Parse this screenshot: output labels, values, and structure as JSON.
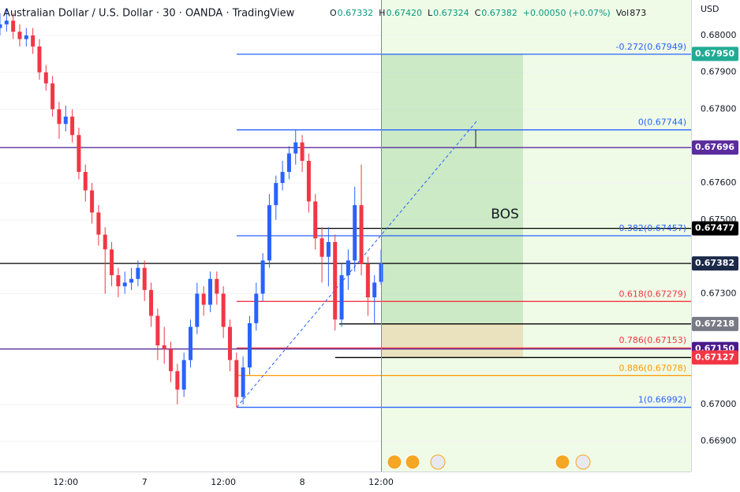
{
  "chart_data": {
    "type": "candlestick",
    "title": "Australian Dollar / U.S. Dollar · 30 · OANDA · TradingView",
    "quote": [
      {
        "key": "O",
        "value": "0.67332"
      },
      {
        "key": "H",
        "value": "0.67420"
      },
      {
        "key": "L",
        "value": "0.67324"
      },
      {
        "key": "C",
        "value": "0.67382"
      },
      {
        "key": "",
        "value": "+0.00050 (+0.07%)"
      },
      {
        "key": "Vol",
        "value": "873"
      }
    ],
    "currency": "USD",
    "annotation": "BOS",
    "up_color": "#2962ff",
    "down_color": "#f23645",
    "ylim": [
      0.66818,
      0.68096
    ],
    "yticks": [
      {
        "value": 0.68,
        "label": "0.68000"
      },
      {
        "value": 0.679,
        "label": "0.67900"
      },
      {
        "value": 0.678,
        "label": "0.67800"
      },
      {
        "value": 0.676,
        "label": "0.67600"
      },
      {
        "value": 0.675,
        "label": "0.67500"
      },
      {
        "value": 0.673,
        "label": "0.67300"
      },
      {
        "value": 0.67,
        "label": "0.67000"
      },
      {
        "value": 0.669,
        "label": "0.66900"
      }
    ],
    "categories": [
      null,
      null,
      null,
      null,
      null,
      null,
      null,
      null,
      null,
      null,
      "12:00",
      null,
      null,
      null,
      null,
      null,
      null,
      null,
      null,
      null,
      null,
      null,
      "7",
      null,
      null,
      null,
      null,
      null,
      null,
      null,
      null,
      null,
      null,
      null,
      "12:00",
      null,
      null,
      null,
      null,
      null,
      null,
      null,
      null,
      null,
      null,
      null,
      "8",
      null,
      null,
      null,
      null,
      null,
      null,
      null,
      null,
      null,
      null,
      null,
      "12:00"
    ],
    "candles": [
      [
        0.6802,
        0.6806,
        0.68,
        0.6803
      ],
      [
        0.6803,
        0.6807,
        0.6801,
        0.6804
      ],
      [
        0.6804,
        0.6806,
        0.6799,
        0.6801
      ],
      [
        0.6801,
        0.6803,
        0.6797,
        0.6799
      ],
      [
        0.6799,
        0.6802,
        0.6797,
        0.68
      ],
      [
        0.68,
        0.6802,
        0.6795,
        0.6797
      ],
      [
        0.6797,
        0.6799,
        0.6788,
        0.679
      ],
      [
        0.679,
        0.6792,
        0.6785,
        0.6787
      ],
      [
        0.6787,
        0.6789,
        0.6778,
        0.678
      ],
      [
        0.678,
        0.6782,
        0.6772,
        0.6776
      ],
      [
        0.6776,
        0.6781,
        0.6774,
        0.6778
      ],
      [
        0.6778,
        0.678,
        0.6771,
        0.6773
      ],
      [
        0.6773,
        0.6775,
        0.6761,
        0.6763
      ],
      [
        0.6763,
        0.6765,
        0.6755,
        0.6758
      ],
      [
        0.6758,
        0.676,
        0.6749,
        0.6752
      ],
      [
        0.6752,
        0.6754,
        0.6743,
        0.6746
      ],
      [
        0.6746,
        0.6748,
        0.673,
        0.6742
      ],
      [
        0.6742,
        0.6744,
        0.6732,
        0.6735
      ],
      [
        0.6735,
        0.6737,
        0.6729,
        0.6732
      ],
      [
        0.6732,
        0.6736,
        0.673,
        0.6733
      ],
      [
        0.6733,
        0.6737,
        0.6731,
        0.6734
      ],
      [
        0.6734,
        0.6739,
        0.6732,
        0.6737
      ],
      [
        0.6737,
        0.6739,
        0.6728,
        0.6731
      ],
      [
        0.6731,
        0.6733,
        0.6721,
        0.6724
      ],
      [
        0.6724,
        0.6726,
        0.6712,
        0.6716
      ],
      [
        0.6716,
        0.6721,
        0.6711,
        0.6715
      ],
      [
        0.6715,
        0.6717,
        0.6706,
        0.6709
      ],
      [
        0.6709,
        0.6711,
        0.67,
        0.6704
      ],
      [
        0.6704,
        0.6714,
        0.6702,
        0.6712
      ],
      [
        0.6712,
        0.6723,
        0.671,
        0.6721
      ],
      [
        0.6721,
        0.6733,
        0.6719,
        0.673
      ],
      [
        0.673,
        0.6732,
        0.6724,
        0.6727
      ],
      [
        0.6727,
        0.6736,
        0.6725,
        0.6734
      ],
      [
        0.6734,
        0.6736,
        0.6727,
        0.673
      ],
      [
        0.673,
        0.6732,
        0.6718,
        0.6721
      ],
      [
        0.6721,
        0.6723,
        0.6709,
        0.6712
      ],
      [
        0.6712,
        0.6714,
        0.66992,
        0.6702
      ],
      [
        0.6702,
        0.6713,
        0.67,
        0.671
      ],
      [
        0.671,
        0.6724,
        0.6708,
        0.6722
      ],
      [
        0.6722,
        0.6733,
        0.672,
        0.673
      ],
      [
        0.673,
        0.6741,
        0.6728,
        0.6739
      ],
      [
        0.6739,
        0.6757,
        0.6737,
        0.6754
      ],
      [
        0.6754,
        0.6762,
        0.675,
        0.676
      ],
      [
        0.676,
        0.6766,
        0.6758,
        0.6763
      ],
      [
        0.6763,
        0.677,
        0.6761,
        0.6768
      ],
      [
        0.6768,
        0.67744,
        0.6765,
        0.6771
      ],
      [
        0.6771,
        0.6773,
        0.6763,
        0.6766
      ],
      [
        0.6766,
        0.6768,
        0.6752,
        0.6755
      ],
      [
        0.6755,
        0.6757,
        0.6742,
        0.6745
      ],
      [
        0.6745,
        0.6748,
        0.6733,
        0.674
      ],
      [
        0.674,
        0.6748,
        0.6732,
        0.6744
      ],
      [
        0.6744,
        0.6746,
        0.672,
        0.6723
      ],
      [
        0.6723,
        0.6738,
        0.6721,
        0.6735
      ],
      [
        0.6735,
        0.6742,
        0.6731,
        0.6739
      ],
      [
        0.6739,
        0.6759,
        0.6736,
        0.6754
      ],
      [
        0.6754,
        0.6765,
        0.6735,
        0.6738
      ],
      [
        0.6738,
        0.674,
        0.6724,
        0.6729
      ],
      [
        0.6729,
        0.6735,
        0.6722,
        0.6733
      ],
      [
        0.67332,
        0.6742,
        0.67324,
        0.67382
      ]
    ],
    "fib_levels": [
      {
        "label": "-0.272(0.67949)",
        "value": 0.67949,
        "color": "#2962ff"
      },
      {
        "label": "0(0.67744)",
        "value": 0.67744,
        "color": "#2962ff"
      },
      {
        "label": "0.382(0.67457)",
        "value": 0.67457,
        "color": "#2962ff"
      },
      {
        "label": "0.618(0.67279)",
        "value": 0.67279,
        "color": "#f23645"
      },
      {
        "label": "0.786(0.67153)",
        "value": 0.67153,
        "color": "#f23645"
      },
      {
        "label": "0.886(0.67078)",
        "value": 0.67078,
        "color": "#ff9800"
      },
      {
        "label": "1(0.66992)",
        "value": 0.66992,
        "color": "#2962ff"
      }
    ],
    "price_labels": [
      {
        "value": 0.6795,
        "label": "0.67950",
        "color": "#22ab94"
      },
      {
        "value": 0.67696,
        "label": "0.67696",
        "color": "#5b2c9e"
      },
      {
        "value": 0.67477,
        "label": "0.67477",
        "color": "#000000"
      },
      {
        "value": 0.67382,
        "label": "0.67382",
        "color": "#1c2a4a"
      },
      {
        "value": 0.67218,
        "label": "0.67218",
        "color": "#787b86"
      },
      {
        "value": 0.6715,
        "label": "0.67150",
        "color": "#4a1a8c"
      },
      {
        "value": 0.67127,
        "label": "0.67127",
        "color": "#f23645"
      }
    ]
  }
}
